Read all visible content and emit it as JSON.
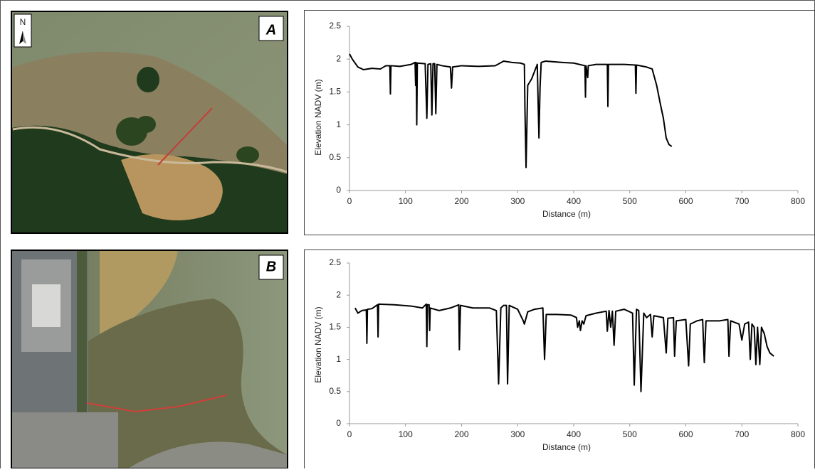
{
  "north_arrow": "N",
  "chart_data": [
    {
      "type": "line",
      "panel_label": "A",
      "color": "#000000",
      "ylabel": "Elevation NADV (m)",
      "xlabel": "Distance (m)",
      "xlim": [
        0,
        800
      ],
      "xticks": [
        0,
        100,
        200,
        300,
        400,
        500,
        600,
        700,
        800
      ],
      "ylim": [
        0,
        2.5
      ],
      "yticks": [
        0,
        0.5,
        1,
        1.5,
        2,
        2.5
      ],
      "x": [
        0,
        5,
        15,
        25,
        40,
        55,
        65,
        72,
        73,
        74,
        90,
        110,
        117,
        118,
        119,
        120,
        121,
        135,
        138,
        140,
        145,
        147,
        149,
        152,
        154,
        156,
        165,
        180,
        182,
        184,
        200,
        230,
        260,
        275,
        290,
        305,
        312,
        313,
        315,
        318,
        325,
        335,
        338,
        340,
        342,
        350,
        380,
        400,
        420,
        421,
        422,
        425,
        426,
        440,
        460,
        461,
        462,
        490,
        510,
        511,
        512,
        530,
        540,
        548,
        555,
        560,
        565,
        570,
        575
      ],
      "values": [
        2.08,
        2.0,
        1.88,
        1.84,
        1.86,
        1.85,
        1.9,
        1.9,
        1.47,
        1.9,
        1.89,
        1.92,
        1.95,
        1.6,
        1.95,
        1.0,
        1.94,
        1.93,
        1.1,
        1.92,
        1.93,
        1.15,
        1.93,
        1.93,
        1.17,
        1.92,
        1.9,
        1.88,
        1.56,
        1.88,
        1.9,
        1.89,
        1.9,
        1.97,
        1.95,
        1.94,
        1.92,
        1.25,
        0.35,
        1.6,
        1.7,
        1.92,
        0.8,
        1.58,
        1.95,
        1.97,
        1.95,
        1.94,
        1.9,
        1.42,
        1.9,
        1.72,
        1.9,
        1.92,
        1.92,
        1.28,
        1.92,
        1.92,
        1.91,
        1.48,
        1.91,
        1.88,
        1.85,
        1.6,
        1.3,
        1.1,
        0.8,
        0.7,
        0.67
      ]
    },
    {
      "type": "line",
      "panel_label": "B",
      "color": "#000000",
      "ylabel": "Elevation NADV (m)",
      "xlabel": "Distance (m)",
      "xlim": [
        0,
        800
      ],
      "xticks": [
        0,
        100,
        200,
        300,
        400,
        500,
        600,
        700,
        800
      ],
      "ylim": [
        0,
        2.5
      ],
      "yticks": [
        0,
        0.5,
        1,
        1.5,
        2,
        2.5
      ],
      "x": [
        10,
        15,
        22,
        30,
        31,
        32,
        40,
        50,
        51,
        52,
        80,
        110,
        130,
        137,
        138,
        139,
        142,
        143,
        144,
        160,
        180,
        195,
        196,
        198,
        220,
        250,
        262,
        266,
        270,
        275,
        280,
        282,
        285,
        300,
        310,
        312,
        318,
        330,
        345,
        348,
        351,
        370,
        395,
        405,
        407,
        410,
        412,
        415,
        418,
        422,
        440,
        458,
        460,
        463,
        466,
        469,
        472,
        475,
        490,
        505,
        508,
        512,
        516,
        520,
        525,
        530,
        537,
        540,
        543,
        560,
        565,
        568,
        578,
        580,
        583,
        600,
        605,
        608,
        620,
        630,
        633,
        636,
        660,
        675,
        677,
        680,
        695,
        700,
        705,
        712,
        715,
        718,
        722,
        725,
        728,
        732,
        735,
        740,
        745,
        750,
        757
      ],
      "values": [
        1.8,
        1.72,
        1.76,
        1.77,
        1.25,
        1.78,
        1.79,
        1.85,
        1.35,
        1.86,
        1.85,
        1.83,
        1.8,
        1.86,
        1.2,
        1.85,
        1.85,
        1.45,
        1.8,
        1.76,
        1.8,
        1.85,
        1.15,
        1.84,
        1.8,
        1.8,
        1.76,
        0.62,
        1.8,
        1.84,
        1.84,
        0.62,
        1.84,
        1.78,
        1.6,
        1.55,
        1.74,
        1.78,
        1.8,
        1.0,
        1.7,
        1.7,
        1.69,
        1.65,
        1.5,
        1.6,
        1.45,
        1.6,
        1.55,
        1.68,
        1.72,
        1.75,
        1.44,
        1.76,
        1.5,
        1.75,
        1.22,
        1.75,
        1.78,
        1.72,
        0.6,
        1.78,
        1.76,
        0.5,
        1.72,
        1.65,
        1.7,
        1.35,
        1.68,
        1.65,
        1.1,
        1.64,
        1.65,
        1.05,
        1.6,
        1.62,
        0.9,
        1.55,
        1.6,
        1.62,
        0.95,
        1.6,
        1.6,
        1.62,
        1.05,
        1.6,
        1.55,
        1.3,
        1.55,
        1.58,
        1.0,
        1.55,
        1.5,
        0.92,
        1.5,
        0.92,
        1.5,
        1.4,
        1.2,
        1.1,
        1.05
      ]
    }
  ]
}
